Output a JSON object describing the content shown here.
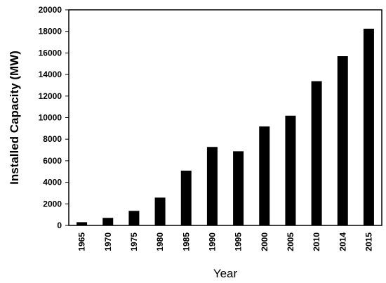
{
  "chart_data": {
    "type": "bar",
    "title": "",
    "xlabel": "Year",
    "ylabel": "Installed Capacity (MW)",
    "categories": [
      "1965",
      "1970",
      "1975",
      "1980",
      "1985",
      "1990",
      "1995",
      "2000",
      "2005",
      "2010",
      "2014",
      "2015"
    ],
    "values": [
      300,
      700,
      1350,
      2580,
      5080,
      7280,
      6880,
      9180,
      10180,
      13380,
      15700,
      18250
    ],
    "ylim": [
      0,
      20000
    ],
    "yticks": [
      0,
      2000,
      4000,
      6000,
      8000,
      10000,
      12000,
      14000,
      16000,
      18000,
      20000
    ],
    "grid": false,
    "legend": "none",
    "bar_color": "#000000"
  }
}
